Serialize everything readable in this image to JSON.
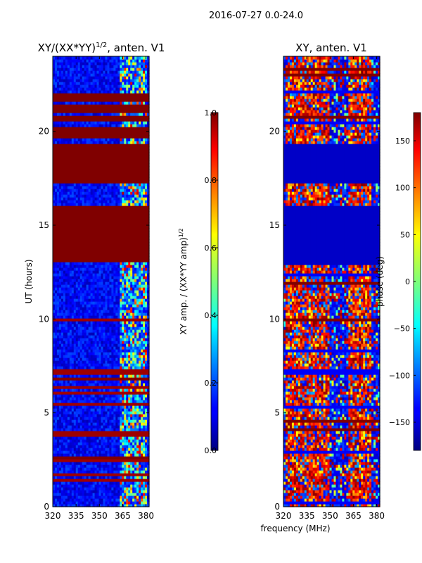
{
  "figure": {
    "title": "2016-07-27 0.0-24.0",
    "shared_xlabel": "frequency (MHz)"
  },
  "chart_data": [
    {
      "type": "heatmap",
      "title": "XY/(XX*YY)",
      "title_superscript": "1/2",
      "title_suffix": ", anten. V1",
      "ylabel": "UT (hours)",
      "xticks": [
        "320",
        "335",
        "350",
        "365",
        "380"
      ],
      "xtick_values": [
        320,
        335,
        350,
        365,
        380
      ],
      "yticks": [
        "0",
        "5",
        "10",
        "15",
        "20"
      ],
      "ytick_values": [
        0,
        5,
        10,
        15,
        20
      ],
      "xlim": [
        320,
        382
      ],
      "ylim": [
        0,
        24
      ],
      "colorbar": {
        "label": "XY amp. / (XX*YY amp)",
        "label_superscript": "1/2",
        "range": [
          0.0,
          1.0
        ],
        "ticks": [
          "0.0",
          "0.2",
          "0.4",
          "0.6",
          "0.8",
          "1.0"
        ],
        "tick_values": [
          0.0,
          0.2,
          0.4,
          0.6,
          0.8,
          1.0
        ],
        "colormap": "jet"
      },
      "saturated_hour_bands": [
        [
          13.0,
          16.1
        ],
        [
          17.3,
          19.4
        ],
        [
          19.6,
          20.2
        ],
        [
          20.5,
          20.9
        ],
        [
          21.0,
          21.4
        ],
        [
          21.6,
          22.0
        ],
        [
          6.7,
          6.9
        ],
        [
          2.5,
          2.65
        ]
      ],
      "high_variance_freq_range": [
        363,
        380
      ]
    },
    {
      "type": "heatmap",
      "title": "XY, anten. V1",
      "ylabel": "",
      "xticks": [
        "320",
        "335",
        "350",
        "365",
        "380"
      ],
      "xtick_values": [
        320,
        335,
        350,
        365,
        380
      ],
      "yticks": [
        "0",
        "5",
        "10",
        "15",
        "20"
      ],
      "ytick_values": [
        0,
        5,
        10,
        15,
        20
      ],
      "xlim": [
        320,
        382
      ],
      "ylim": [
        0,
        24
      ],
      "colorbar": {
        "label": "phase (deg)",
        "range": [
          -180,
          180
        ],
        "ticks": [
          "−150",
          "−100",
          "−50",
          "0",
          "50",
          "100",
          "150"
        ],
        "tick_values": [
          -150,
          -100,
          -50,
          0,
          50,
          100,
          150
        ],
        "colormap": "jet"
      },
      "flat_hour_bands": [
        [
          12.9,
          16.1
        ],
        [
          17.3,
          19.3
        ]
      ],
      "high_phase_freq_ranges": [
        [
          321,
          349
        ],
        [
          362,
          377
        ]
      ]
    }
  ]
}
